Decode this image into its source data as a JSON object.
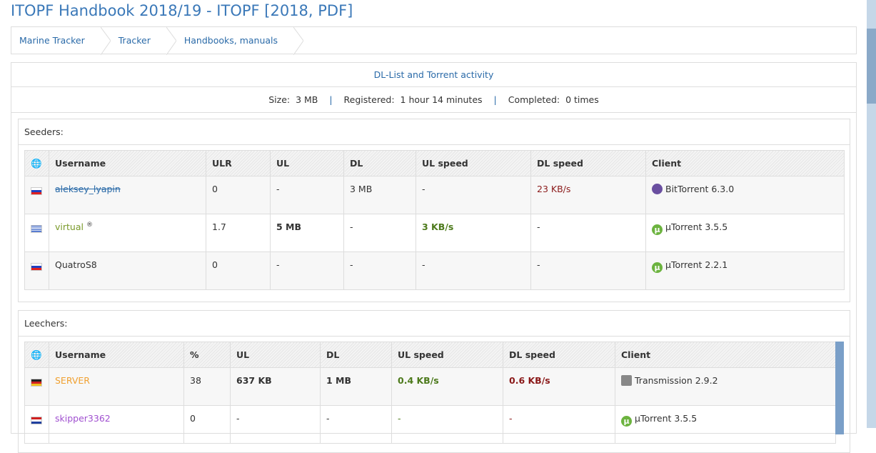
{
  "title": "ITOPF Handbook 2018/19 - ITOPF [2018, PDF]",
  "breadcrumbs": [
    "Marine Tracker",
    "Tracker",
    "Handbooks, manuals"
  ],
  "panel_title": "DL-List and Torrent activity",
  "stats": {
    "size_label": "Size:",
    "size": "3 MB",
    "registered_label": "Registered:",
    "registered": "1 hour 14 minutes",
    "completed_label": "Completed:",
    "completed": "0 times",
    "sep": "|"
  },
  "seeders": {
    "label": "Seeders:",
    "headers": [
      "Username",
      "ULR",
      "UL",
      "DL",
      "UL speed",
      "DL speed",
      "Client"
    ],
    "rows": [
      {
        "flag": "ru",
        "user": "aleksey_lyapin",
        "ulr": "0",
        "ul": "-",
        "dl": "3 MB",
        "ul_speed": "-",
        "dl_speed": "23 KB/s",
        "client": "BitTorrent 6.3.0",
        "client_icon": "bittorrent-icon"
      },
      {
        "flag": "gr",
        "user": "virtual",
        "badge": "®",
        "ulr": "1.7",
        "ul": "5 MB",
        "dl": "-",
        "ul_speed": "3 KB/s",
        "dl_speed": "-",
        "client": "µTorrent 3.5.5",
        "client_icon": "utorrent-icon"
      },
      {
        "flag": "si",
        "user": "QuatroS8",
        "ulr": "0",
        "ul": "-",
        "dl": "-",
        "ul_speed": "-",
        "dl_speed": "-",
        "client": "µTorrent 2.2.1",
        "client_icon": "utorrent-icon"
      }
    ]
  },
  "leechers": {
    "label": "Leechers:",
    "headers": [
      "Username",
      "%",
      "UL",
      "DL",
      "UL speed",
      "DL speed",
      "Client"
    ],
    "rows": [
      {
        "flag": "de",
        "user": "SERVER",
        "pct": "38",
        "ul": "637 KB",
        "dl": "1 MB",
        "ul_speed": "0.4 KB/s",
        "dl_speed": "0.6 KB/s",
        "client": "Transmission 2.9.2",
        "client_icon": "transmission-icon"
      },
      {
        "flag": "nl",
        "user": "skipper3362",
        "pct": "0",
        "ul": "-",
        "dl": "-",
        "ul_speed": "-",
        "dl_speed": "-",
        "client": "µTorrent 3.5.5",
        "client_icon": "utorrent-icon"
      }
    ]
  },
  "colors": {
    "link": "#2a6aa8",
    "title": "#3a78b8",
    "green": "#4d7a1c",
    "red": "#8b1a1a",
    "server": "#f0a030",
    "skipper": "#a050d0",
    "virtual": "#7a9a2a"
  }
}
